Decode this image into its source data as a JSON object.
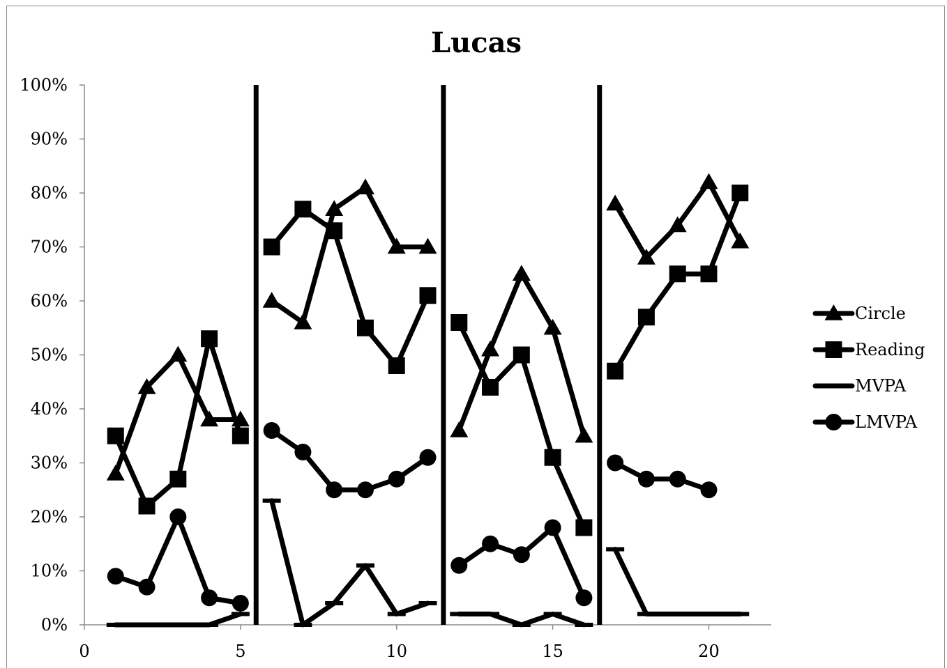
{
  "chart_data": {
    "type": "line",
    "title": "Lucas",
    "xlabel": "",
    "ylabel": "",
    "xlim": [
      0,
      22
    ],
    "ylim": [
      0,
      1
    ],
    "x_ticks": [
      0,
      5,
      10,
      15,
      20
    ],
    "x_tick_labels": [
      "0",
      "5",
      "10",
      "15",
      "20"
    ],
    "y_ticks": [
      0,
      0.1,
      0.2,
      0.3,
      0.4,
      0.5,
      0.6,
      0.7,
      0.8,
      0.9,
      1.0
    ],
    "y_tick_labels": [
      "0%",
      "10%",
      "20%",
      "30%",
      "40%",
      "50%",
      "60%",
      "70%",
      "80%",
      "90%",
      "100%"
    ],
    "phase_lines": [
      5.5,
      11.5,
      16.5
    ],
    "grid": false,
    "legend": "right",
    "series": [
      {
        "name": "Circle",
        "marker": "triangle",
        "segments": [
          [
            [
              1,
              0.28
            ],
            [
              2,
              0.44
            ],
            [
              3,
              0.5
            ],
            [
              4,
              0.38
            ],
            [
              5,
              0.38
            ]
          ],
          [
            [
              6,
              0.6
            ],
            [
              7,
              0.56
            ],
            [
              8,
              0.77
            ],
            [
              9,
              0.81
            ],
            [
              10,
              0.7
            ],
            [
              11,
              0.7
            ]
          ],
          [
            [
              12,
              0.36
            ],
            [
              13,
              0.51
            ],
            [
              14,
              0.65
            ],
            [
              15,
              0.55
            ],
            [
              16,
              0.35
            ]
          ],
          [
            [
              17,
              0.78
            ],
            [
              18,
              0.68
            ],
            [
              19,
              0.74
            ],
            [
              20,
              0.82
            ],
            [
              21,
              0.71
            ]
          ]
        ]
      },
      {
        "name": "Reading",
        "marker": "square",
        "segments": [
          [
            [
              1,
              0.35
            ],
            [
              2,
              0.22
            ],
            [
              3,
              0.27
            ],
            [
              4,
              0.53
            ],
            [
              5,
              0.35
            ]
          ],
          [
            [
              6,
              0.7
            ],
            [
              7,
              0.77
            ],
            [
              8,
              0.73
            ],
            [
              9,
              0.55
            ],
            [
              10,
              0.48
            ],
            [
              11,
              0.61
            ]
          ],
          [
            [
              12,
              0.56
            ],
            [
              13,
              0.44
            ],
            [
              14,
              0.5
            ],
            [
              15,
              0.31
            ],
            [
              16,
              0.18
            ]
          ],
          [
            [
              17,
              0.47
            ],
            [
              18,
              0.57
            ],
            [
              19,
              0.65
            ],
            [
              20,
              0.65
            ],
            [
              21,
              0.8
            ]
          ]
        ]
      },
      {
        "name": "MVPA",
        "marker": "dash",
        "segments": [
          [
            [
              1,
              0.0
            ],
            [
              2,
              0.0
            ],
            [
              3,
              0.0
            ],
            [
              4,
              0.0
            ],
            [
              5,
              0.02
            ]
          ],
          [
            [
              6,
              0.23
            ],
            [
              7,
              0.0
            ],
            [
              8,
              0.04
            ],
            [
              9,
              0.11
            ],
            [
              10,
              0.02
            ],
            [
              11,
              0.04
            ]
          ],
          [
            [
              12,
              0.02
            ],
            [
              13,
              0.02
            ],
            [
              14,
              0.0
            ],
            [
              15,
              0.02
            ],
            [
              16,
              0.0
            ]
          ],
          [
            [
              17,
              0.14
            ],
            [
              18,
              0.02
            ],
            [
              19,
              0.02
            ],
            [
              20,
              0.02
            ],
            [
              21,
              0.02
            ]
          ]
        ]
      },
      {
        "name": "LMVPA",
        "marker": "circle",
        "segments": [
          [
            [
              1,
              0.09
            ],
            [
              2,
              0.07
            ],
            [
              3,
              0.2
            ],
            [
              4,
              0.05
            ],
            [
              5,
              0.04
            ]
          ],
          [
            [
              6,
              0.36
            ],
            [
              7,
              0.32
            ],
            [
              8,
              0.25
            ],
            [
              9,
              0.25
            ],
            [
              10,
              0.27
            ],
            [
              11,
              0.31
            ]
          ],
          [
            [
              12,
              0.11
            ],
            [
              13,
              0.15
            ],
            [
              14,
              0.13
            ],
            [
              15,
              0.18
            ],
            [
              16,
              0.05
            ]
          ],
          [
            [
              17,
              0.3
            ],
            [
              18,
              0.27
            ],
            [
              19,
              0.27
            ],
            [
              20,
              0.25
            ]
          ]
        ]
      }
    ]
  }
}
